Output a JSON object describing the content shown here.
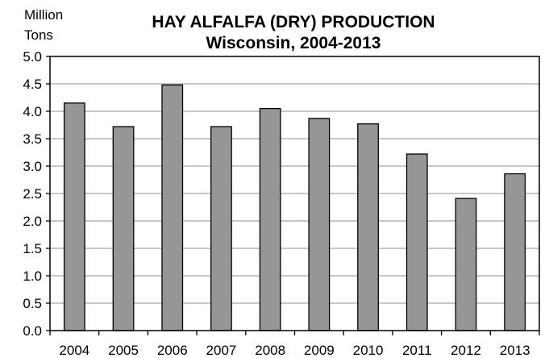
{
  "chart_data": {
    "type": "bar",
    "title": "HAY ALFALFA (DRY) PRODUCTION",
    "subtitle": "Wisconsin, 2004-2013",
    "ylabel_lines": [
      "Million",
      "Tons"
    ],
    "xlabel": "",
    "categories": [
      "2004",
      "2005",
      "2006",
      "2007",
      "2008",
      "2009",
      "2010",
      "2011",
      "2012",
      "2013"
    ],
    "values": [
      4.15,
      3.72,
      4.48,
      3.72,
      4.05,
      3.87,
      3.77,
      3.22,
      2.41,
      2.86
    ],
    "ylim": [
      0,
      5.0
    ],
    "yticks": [
      "0.0",
      "0.5",
      "1.0",
      "1.5",
      "2.0",
      "2.5",
      "3.0",
      "3.5",
      "4.0",
      "4.5",
      "5.0"
    ],
    "grid": true,
    "legend": "none",
    "bar_color": "#969696",
    "bar_edge_color": "#000000",
    "grid_color": "#a6a6a6"
  }
}
